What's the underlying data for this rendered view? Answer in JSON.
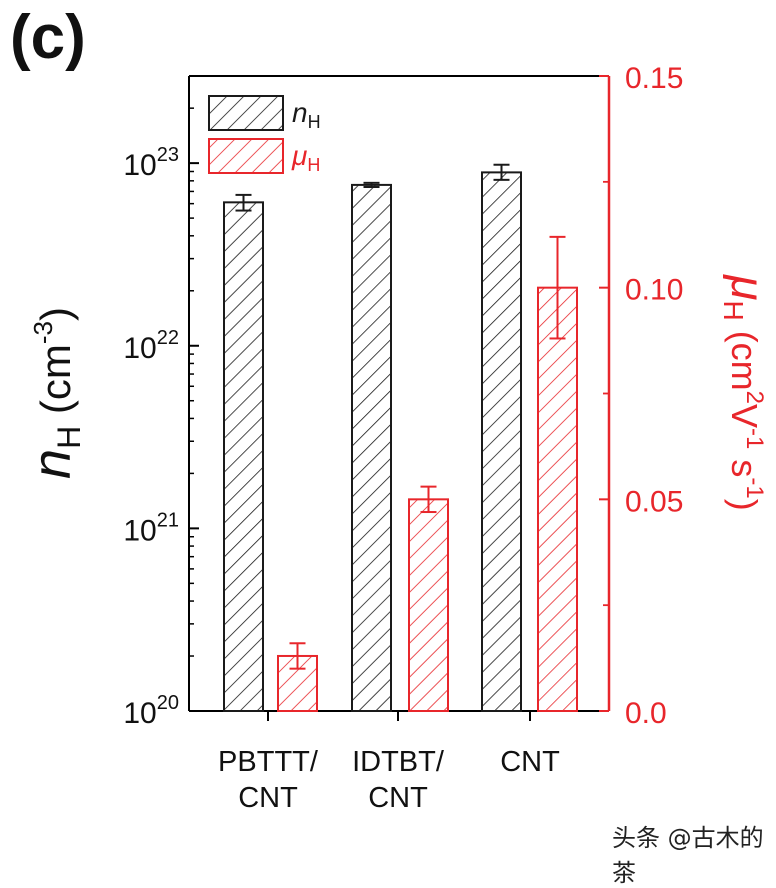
{
  "panel_label": "(c)",
  "watermark": "头条 @古木的茶",
  "colors": {
    "black_series": "#1a1a1a",
    "red_series": "#e8262b"
  },
  "chart_data": {
    "type": "bar",
    "categories": [
      {
        "lines": [
          "PBTTT/",
          "CNT"
        ]
      },
      {
        "lines": [
          "IDTBT/",
          "CNT"
        ]
      },
      {
        "lines": [
          "CNT"
        ]
      }
    ],
    "series": [
      {
        "name": "n_H",
        "legend_main": "n",
        "legend_sub": "H",
        "axis": "left",
        "values": [
          6.1e+22,
          7.6e+22,
          8.9e+22
        ],
        "errors_low": [
          5.5e+22,
          7.4e+22,
          8.1e+22
        ],
        "errors_high": [
          6.7e+22,
          7.8e+22,
          9.8e+22
        ]
      },
      {
        "name": "mu_H",
        "legend_main": "μ",
        "legend_sub": "H",
        "axis": "right",
        "values": [
          0.013,
          0.05,
          0.1
        ],
        "errors_low": [
          0.01,
          0.047,
          0.088
        ],
        "errors_high": [
          0.016,
          0.053,
          0.112
        ]
      }
    ],
    "left_axis": {
      "scale": "log",
      "ylim": [
        1e+20,
        3e+23
      ],
      "ticks": [
        {
          "value": 1e+20,
          "base": "10",
          "exp": "20"
        },
        {
          "value": 1e+21,
          "base": "10",
          "exp": "21"
        },
        {
          "value": 1e+22,
          "base": "10",
          "exp": "22"
        },
        {
          "value": 1e+23,
          "base": "10",
          "exp": "23"
        }
      ],
      "label": {
        "italic": "n",
        "sub": "H",
        "unit": " (cm",
        "sup": "-3",
        "close": ")"
      }
    },
    "right_axis": {
      "scale": "linear",
      "ylim": [
        0,
        0.15
      ],
      "ticks": [
        {
          "value": 0,
          "label": "0.0"
        },
        {
          "value": 0.05,
          "label": "0.05"
        },
        {
          "value": 0.1,
          "label": "0.10"
        },
        {
          "value": 0.15,
          "label": "0.15"
        }
      ],
      "minor_ticks": [
        0.025,
        0.075,
        0.125
      ],
      "label": {
        "italic": "μ",
        "sub": "H",
        "unit1": " (cm",
        "sup1": "2",
        "unit2": "V",
        "sup2": "-1",
        "unit3": " s",
        "sup3": "-1",
        "close": ")"
      }
    },
    "legend_position": "top-left"
  }
}
